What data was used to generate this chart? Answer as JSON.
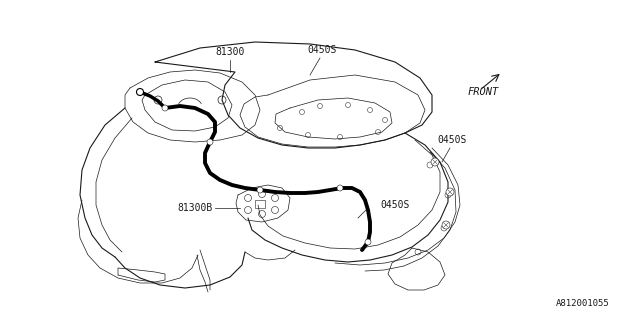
{
  "bg_color": "#ffffff",
  "line_color": "#1a1a1a",
  "thin_line": 0.5,
  "medium_line": 0.8,
  "thick_line": 2.8,
  "harness_color": "#000000",
  "label_81300": "81300",
  "label_81300B": "81300B",
  "label_0450S_top": "0450S",
  "label_0450S_mid": "0450S",
  "label_0450S_right": "0450S",
  "label_FRONT": "FRONT",
  "label_part_no": "A812001055",
  "font_size_labels": 7.0,
  "font_size_part": 6.5
}
